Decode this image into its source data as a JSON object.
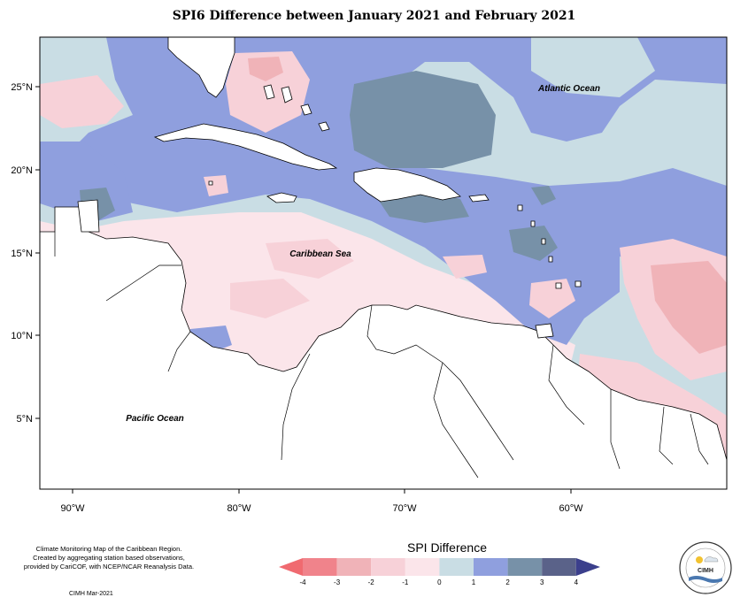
{
  "title": "SPI6 Difference between January 2021 and February 2021",
  "map": {
    "lon_ticks": [
      "90°W",
      "80°W",
      "70°W",
      "60°W"
    ],
    "lat_ticks": [
      "25°N",
      "20°N",
      "15°N",
      "10°N",
      "5°N"
    ],
    "labels": {
      "atlantic": "Atlantic Ocean",
      "caribbean": "Caribbean Sea",
      "pacific": "Pacific Ocean"
    }
  },
  "legend": {
    "title": "SPI Difference",
    "ticks": [
      "-4",
      "-3",
      "-2",
      "-1",
      "0",
      "1",
      "2",
      "3",
      "4"
    ],
    "colors": [
      "#f0838b",
      "#f0b3b8",
      "#f7d1d8",
      "#fbe5ea",
      "#c9dde4",
      "#8f9fde",
      "#7791a8",
      "#5a6289"
    ],
    "arrow_low": "#f06a70",
    "arrow_high": "#3b3f8c"
  },
  "credit": {
    "line1": "Climate Monitoring Map of the Caribbean Region.",
    "line2": "Created by aggregating station based observations,",
    "line3": "provided by CariCOF, with NCEP/NCAR Reanalysis Data.",
    "date": "CIMH Mar-2021"
  },
  "logo": {
    "text": "CIMH"
  }
}
